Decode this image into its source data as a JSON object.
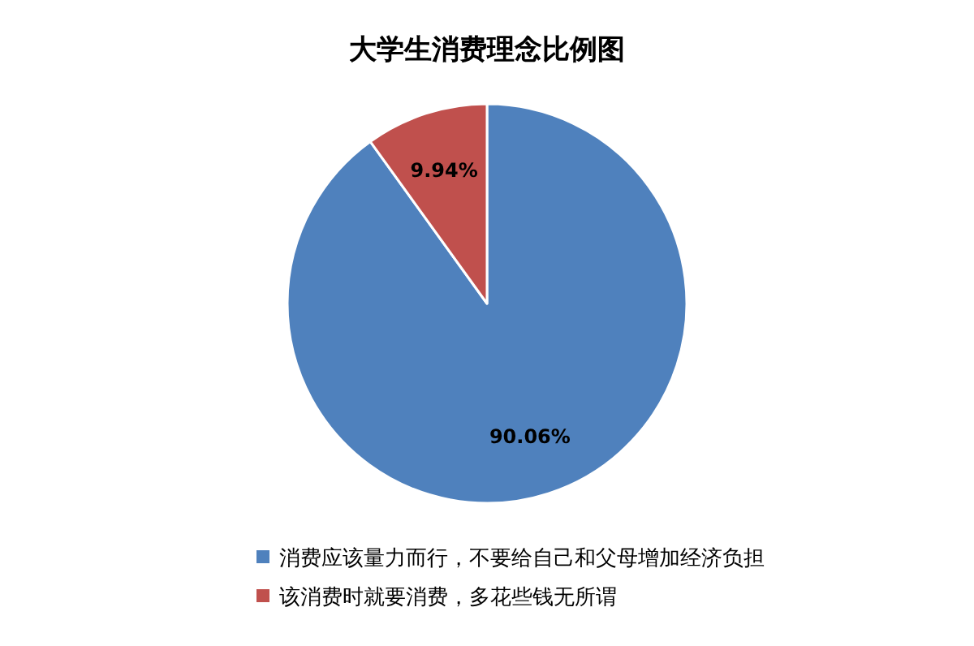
{
  "chart_data": {
    "type": "pie",
    "title": "大学生消费理念比例图",
    "categories": [
      "消费应该量力而行，不要给自己和父母增加经济负担",
      "该消费时就要消费，多花些钱无所谓"
    ],
    "values": [
      90.06,
      9.94
    ],
    "colors": [
      "#4f81bd",
      "#c0504d"
    ],
    "value_labels": [
      "90.06%",
      "9.94%"
    ],
    "legend": "bottom"
  }
}
